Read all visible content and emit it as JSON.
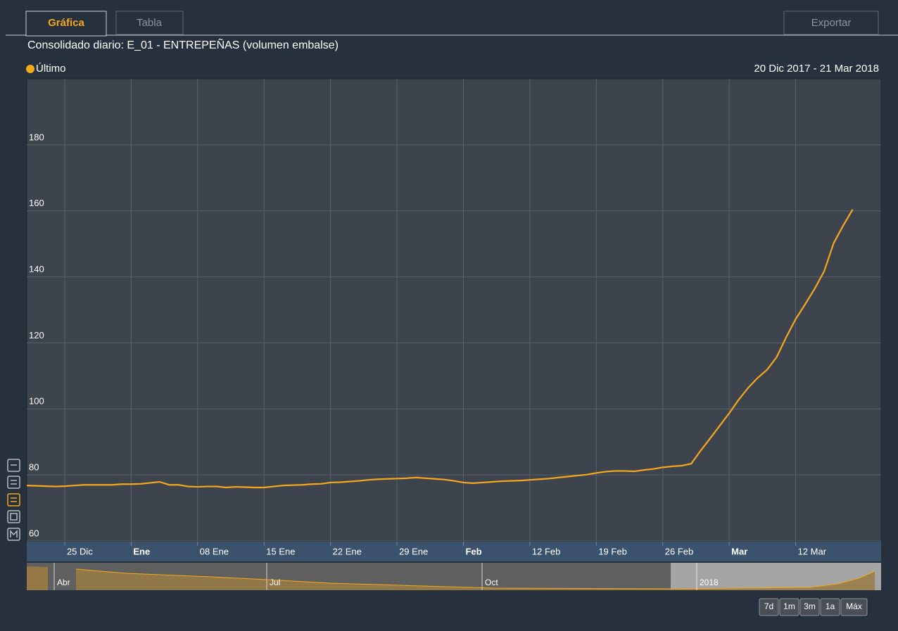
{
  "tabs": [
    "Gráfica",
    "Tabla"
  ],
  "export": "Exportar",
  "chart_data": {
    "type": "line",
    "title": "Consolidado diario: E_01 - ENTREPEÑAS (volumen embalse)",
    "date_range": "20 Dic 2017 - 21 Mar 2018",
    "x": [
      "2017-12-21",
      "2017-12-22",
      "2017-12-23",
      "2017-12-24",
      "2017-12-25",
      "2017-12-26",
      "2017-12-27",
      "2017-12-28",
      "2017-12-29",
      "2017-12-30",
      "2017-12-31",
      "2018-01-01",
      "2018-01-02",
      "2018-01-03",
      "2018-01-04",
      "2018-01-05",
      "2018-01-06",
      "2018-01-07",
      "2018-01-08",
      "2018-01-09",
      "2018-01-10",
      "2018-01-11",
      "2018-01-12",
      "2018-01-13",
      "2018-01-14",
      "2018-01-15",
      "2018-01-16",
      "2018-01-17",
      "2018-01-18",
      "2018-01-19",
      "2018-01-20",
      "2018-01-21",
      "2018-01-22",
      "2018-01-23",
      "2018-01-24",
      "2018-01-25",
      "2018-01-26",
      "2018-01-27",
      "2018-01-28",
      "2018-01-29",
      "2018-01-30",
      "2018-01-31",
      "2018-02-01",
      "2018-02-02",
      "2018-02-03",
      "2018-02-04",
      "2018-02-05",
      "2018-02-06",
      "2018-02-07",
      "2018-02-08",
      "2018-02-09",
      "2018-02-10",
      "2018-02-11",
      "2018-02-12",
      "2018-02-13",
      "2018-02-14",
      "2018-02-15",
      "2018-02-16",
      "2018-02-17",
      "2018-02-18",
      "2018-02-19",
      "2018-02-20",
      "2018-02-21",
      "2018-02-22",
      "2018-02-23",
      "2018-02-24",
      "2018-02-25",
      "2018-02-26",
      "2018-02-27",
      "2018-02-28",
      "2018-03-01",
      "2018-03-02",
      "2018-03-03",
      "2018-03-04",
      "2018-03-05",
      "2018-03-06",
      "2018-03-07",
      "2018-03-08",
      "2018-03-09",
      "2018-03-10",
      "2018-03-11",
      "2018-03-12",
      "2018-03-13",
      "2018-03-14",
      "2018-03-15",
      "2018-03-16",
      "2018-03-17",
      "2018-03-18"
    ],
    "series": [
      {
        "name": "Último",
        "color": "#f5a81c",
        "values": [
          76.8,
          76.7,
          76.6,
          76.5,
          76.6,
          76.8,
          77.0,
          77.0,
          77.0,
          77.0,
          77.2,
          77.2,
          77.3,
          77.6,
          77.9,
          77.0,
          77.0,
          76.5,
          76.4,
          76.5,
          76.5,
          76.2,
          76.4,
          76.3,
          76.2,
          76.2,
          76.5,
          76.8,
          76.9,
          77.0,
          77.2,
          77.3,
          77.7,
          77.8,
          78.0,
          78.2,
          78.5,
          78.7,
          78.8,
          78.9,
          79.0,
          79.2,
          79.0,
          78.8,
          78.6,
          78.2,
          77.7,
          77.5,
          77.7,
          77.9,
          78.1,
          78.2,
          78.3,
          78.5,
          78.7,
          78.9,
          79.2,
          79.5,
          79.8,
          80.1,
          80.6,
          81.0,
          81.2,
          81.2,
          81.1,
          81.5,
          81.8,
          82.3,
          82.6,
          82.8,
          83.4,
          87.4,
          91.1,
          94.9,
          98.7,
          102.8,
          106.4,
          109.4,
          111.9,
          115.7,
          121.7,
          127.2,
          131.7,
          136.4,
          141.7,
          150.2,
          155.5,
          160.4
        ]
      }
    ],
    "xlim": [
      "2017-12-21",
      "2018-03-21"
    ],
    "xticks": [
      {
        "value": "2017-12-25",
        "label": "25 Dic"
      },
      {
        "value": "2018-01-01",
        "label": "Ene"
      },
      {
        "value": "2018-01-08",
        "label": "08 Ene"
      },
      {
        "value": "2018-01-15",
        "label": "15 Ene"
      },
      {
        "value": "2018-01-22",
        "label": "22 Ene"
      },
      {
        "value": "2018-01-29",
        "label": "29 Ene"
      },
      {
        "value": "2018-02-05",
        "label": "Feb"
      },
      {
        "value": "2018-02-12",
        "label": "12 Feb"
      },
      {
        "value": "2018-02-19",
        "label": "19 Feb"
      },
      {
        "value": "2018-02-26",
        "label": "26 Feb"
      },
      {
        "value": "2018-03-05",
        "label": "Mar"
      },
      {
        "value": "2018-03-12",
        "label": "12 Mar"
      }
    ],
    "ylim": [
      60,
      200
    ],
    "yticks": [
      60,
      80,
      100,
      120,
      140,
      160,
      180
    ],
    "grid": true
  },
  "navigator": {
    "labels": [
      "Abr",
      "Jul",
      "Oct",
      "2018"
    ]
  },
  "range_buttons": [
    "7d",
    "1m",
    "3m",
    "1a",
    "Máx"
  ]
}
